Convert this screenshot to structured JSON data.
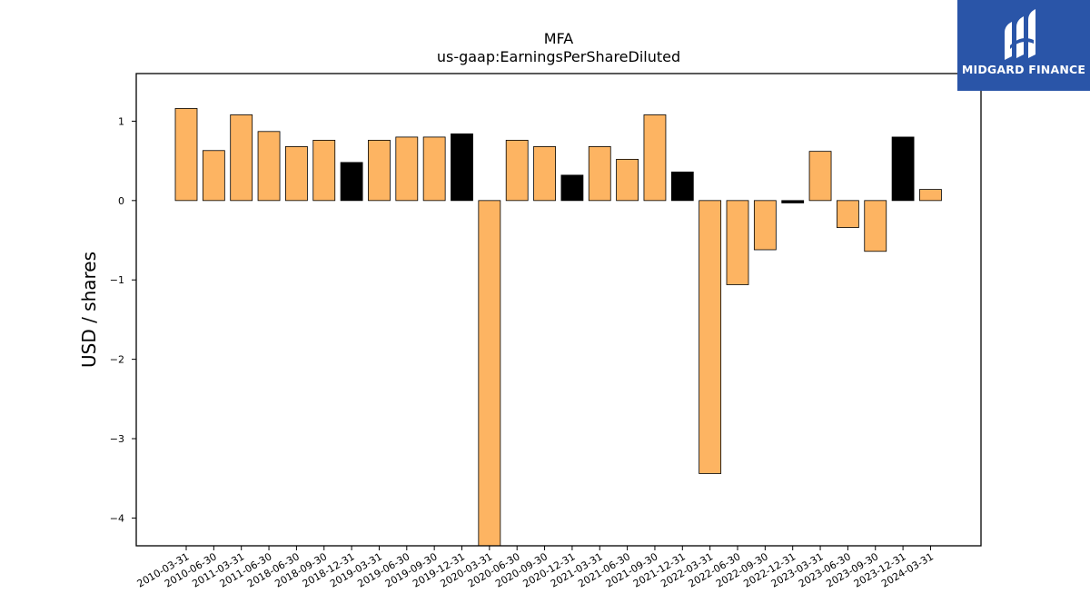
{
  "chart_data": {
    "type": "bar",
    "title": "MFA",
    "subtitle": "us-gaap:EarningsPerShareDiluted",
    "xlabel": "",
    "ylabel": "USD / shares",
    "ylim": [
      -4.35,
      1.6
    ],
    "yticks": [
      1,
      0,
      -1,
      -2,
      -3,
      -4
    ],
    "ytick_labels": [
      "1",
      "0",
      "−1",
      "−2",
      "−3",
      "−4"
    ],
    "grid": false,
    "categories": [
      "2010-03-31",
      "2010-06-30",
      "2011-03-31",
      "2011-06-30",
      "2018-06-30",
      "2018-09-30",
      "2018-12-31",
      "2019-03-31",
      "2019-06-30",
      "2019-09-30",
      "2019-12-31",
      "2020-03-31",
      "2020-06-30",
      "2020-09-30",
      "2020-12-31",
      "2021-03-31",
      "2021-06-30",
      "2021-09-30",
      "2021-12-31",
      "2022-03-31",
      "2022-06-30",
      "2022-09-30",
      "2022-12-31",
      "2023-03-31",
      "2023-06-30",
      "2023-09-30",
      "2023-12-31",
      "2024-03-31"
    ],
    "values": [
      1.16,
      0.63,
      1.08,
      0.87,
      0.68,
      0.76,
      0.48,
      0.76,
      0.8,
      0.8,
      0.84,
      -4.4,
      0.76,
      0.68,
      0.32,
      0.68,
      0.52,
      1.08,
      0.36,
      -3.44,
      -1.06,
      -0.62,
      -0.03,
      0.62,
      -0.34,
      -0.64,
      0.8,
      0.14
    ],
    "series": [
      {
        "color": "#fdb462",
        "indices": [
          0,
          1,
          2,
          3,
          4,
          5,
          7,
          8,
          9,
          11,
          12,
          13,
          15,
          16,
          17,
          19,
          20,
          21,
          23,
          24,
          25,
          27
        ]
      },
      {
        "color": "#000000",
        "indices": [
          6,
          10,
          14,
          18,
          22,
          26
        ]
      }
    ]
  },
  "logo": {
    "text": "MIDGARD FINANCE",
    "icon": "midgard-logo-icon",
    "background": "#2a55a8"
  }
}
